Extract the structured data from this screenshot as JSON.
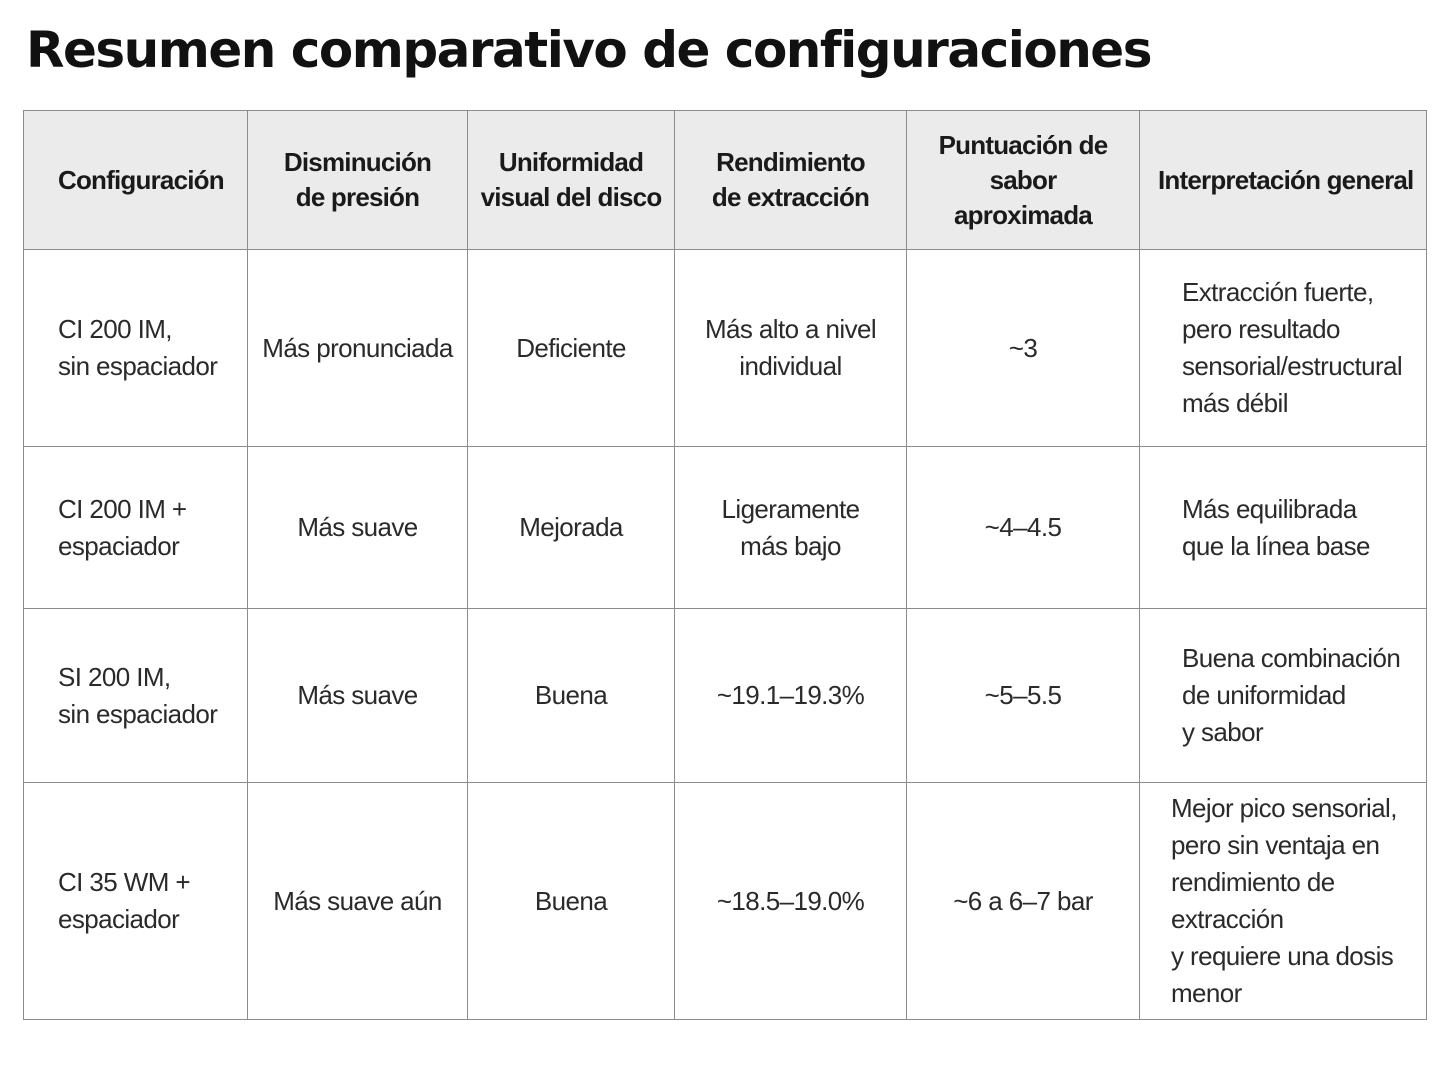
{
  "title": "Resumen comparativo de configuraciones",
  "table": {
    "headers": [
      "Configuración",
      "Disminución\nde presión",
      "Uniformidad\nvisual del disco",
      "Rendimiento\nde extracción",
      "Puntuación de sabor\naproximada",
      "Interpretación general"
    ],
    "rows": [
      [
        "CI 200 IM,\nsin espaciador",
        "Más pronunciada",
        "Deficiente",
        "Más alto a nivel\nindividual",
        "~3",
        "Extracción fuerte,\npero resultado\nsensorial/estructural\nmás débil"
      ],
      [
        "CI 200 IM +\nespaciador",
        "Más suave",
        "Mejorada",
        "Ligeramente\nmás bajo",
        "~4–4.5",
        "Más equilibrada\nque la línea base"
      ],
      [
        "SI 200 IM,\nsin espaciador",
        "Más suave",
        "Buena",
        "~19.1–19.3%",
        "~5–5.5",
        "Buena combinación\nde uniformidad\ny sabor"
      ],
      [
        "CI 35 WM +\nespaciador",
        "Más suave aún",
        "Buena",
        "~18.5–19.0%",
        "~6 a 6–7 bar",
        "Mejor pico sensorial,\npero sin ventaja en\nrendimiento de extracción\ny requiere una dosis\nmenor"
      ]
    ]
  }
}
